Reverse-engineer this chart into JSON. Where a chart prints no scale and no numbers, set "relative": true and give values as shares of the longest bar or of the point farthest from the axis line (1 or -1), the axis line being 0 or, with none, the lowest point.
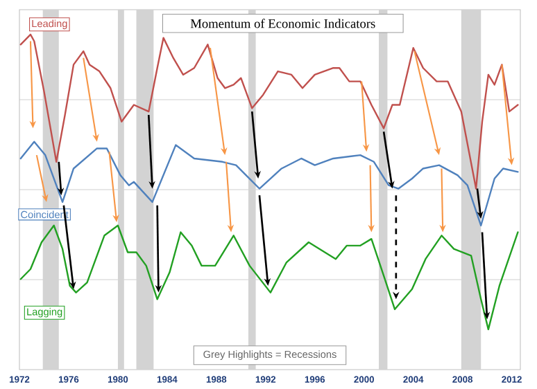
{
  "chart_data": {
    "type": "line",
    "title": "Momentum of Economic Indicators",
    "relative": true,
    "grid": "y",
    "xlim": [
      1972,
      2012.7
    ],
    "xticks": [
      1972,
      1976,
      1980,
      1984,
      1988,
      1992,
      1996,
      2000,
      2004,
      2008,
      2012
    ],
    "series": [
      {
        "name": "Leading",
        "color": "#c0504d",
        "x": [
          1972.1,
          1972.9,
          1973.2,
          1974.0,
          1975.0,
          1975.7,
          1976.4,
          1977.2,
          1977.7,
          1978.5,
          1979.4,
          1980.3,
          1981.3,
          1982.5,
          1983.2,
          1983.7,
          1984.5,
          1985.3,
          1986.2,
          1987.3,
          1988.1,
          1988.7,
          1989.4,
          1990.0,
          1990.4,
          1990.9,
          1991.8,
          1993.0,
          1994.1,
          1995.0,
          1996.0,
          1997.5,
          1998.0,
          1998.8,
          1999.7,
          2000.6,
          2001.6,
          2002.3,
          2002.9,
          2004.0,
          2004.8,
          2005.9,
          2006.8,
          2007.9,
          2009.1,
          2009.6,
          2010.1,
          2010.6,
          2011.2,
          2011.8,
          2012.5
        ],
        "values": [
          0.97,
          1.0,
          0.98,
          0.83,
          0.62,
          0.76,
          0.91,
          0.95,
          0.91,
          0.89,
          0.84,
          0.74,
          0.79,
          0.77,
          0.9,
          0.99,
          0.93,
          0.88,
          0.9,
          0.97,
          0.87,
          0.84,
          0.85,
          0.87,
          0.83,
          0.78,
          0.82,
          0.89,
          0.88,
          0.84,
          0.88,
          0.9,
          0.9,
          0.86,
          0.86,
          0.79,
          0.72,
          0.79,
          0.79,
          0.96,
          0.9,
          0.86,
          0.86,
          0.77,
          0.54,
          0.74,
          0.88,
          0.85,
          0.91,
          0.77,
          0.79
        ]
      },
      {
        "name": "Coincident",
        "color": "#4f81bd",
        "x": [
          1972.1,
          1973.2,
          1974.1,
          1975.5,
          1976.4,
          1978.3,
          1979.1,
          1980.2,
          1980.9,
          1981.3,
          1982.8,
          1984.7,
          1986.2,
          1988.5,
          1989.6,
          1991.5,
          1993.3,
          1994.9,
          1996.0,
          1997.5,
          1999.7,
          2000.8,
          2002.0,
          2002.8,
          2003.9,
          2004.8,
          2006.1,
          2007.6,
          2008.4,
          2009.5,
          2010.6,
          2011.3,
          2012.5
        ],
        "values": [
          0.63,
          0.68,
          0.64,
          0.5,
          0.6,
          0.66,
          0.66,
          0.58,
          0.55,
          0.56,
          0.5,
          0.67,
          0.63,
          0.62,
          0.61,
          0.54,
          0.6,
          0.63,
          0.61,
          0.63,
          0.64,
          0.62,
          0.55,
          0.54,
          0.57,
          0.6,
          0.61,
          0.58,
          0.55,
          0.43,
          0.57,
          0.6,
          0.59
        ]
      },
      {
        "name": "Lagging",
        "color": "#22a022",
        "x": [
          1972.1,
          1972.9,
          1973.8,
          1974.8,
          1975.5,
          1976.1,
          1976.6,
          1977.5,
          1978.9,
          1980.0,
          1980.8,
          1981.5,
          1982.3,
          1983.2,
          1984.2,
          1985.1,
          1986.0,
          1986.8,
          1987.9,
          1989.4,
          1990.7,
          1992.4,
          1993.7,
          1995.5,
          1997.7,
          1998.6,
          1999.7,
          2000.6,
          2001.6,
          2002.5,
          2003.9,
          2005.0,
          2006.3,
          2007.3,
          2008.7,
          2009.5,
          2010.1,
          2011.0,
          2012.5
        ],
        "values": [
          0.27,
          0.3,
          0.38,
          0.43,
          0.36,
          0.25,
          0.23,
          0.26,
          0.4,
          0.43,
          0.35,
          0.35,
          0.31,
          0.21,
          0.29,
          0.41,
          0.37,
          0.31,
          0.31,
          0.4,
          0.31,
          0.23,
          0.32,
          0.38,
          0.33,
          0.37,
          0.37,
          0.39,
          0.28,
          0.18,
          0.24,
          0.33,
          0.4,
          0.36,
          0.34,
          0.21,
          0.12,
          0.25,
          0.41
        ]
      }
    ],
    "bands": [
      {
        "axis": "x",
        "from": 1973.9,
        "to": 1975.2,
        "color": "#d3d3d3"
      },
      {
        "axis": "x",
        "from": 1980.0,
        "to": 1980.5,
        "color": "#d3d3d3"
      },
      {
        "axis": "x",
        "from": 1981.5,
        "to": 1982.9,
        "color": "#d3d3d3"
      },
      {
        "axis": "x",
        "from": 1990.6,
        "to": 1991.2,
        "color": "#d3d3d3"
      },
      {
        "axis": "x",
        "from": 2001.2,
        "to": 2001.9,
        "color": "#d3d3d3"
      },
      {
        "axis": "x",
        "from": 2007.9,
        "to": 2009.5,
        "color": "#d3d3d3"
      }
    ],
    "annotations": [
      "Grey Highlights = Recessions"
    ]
  }
}
